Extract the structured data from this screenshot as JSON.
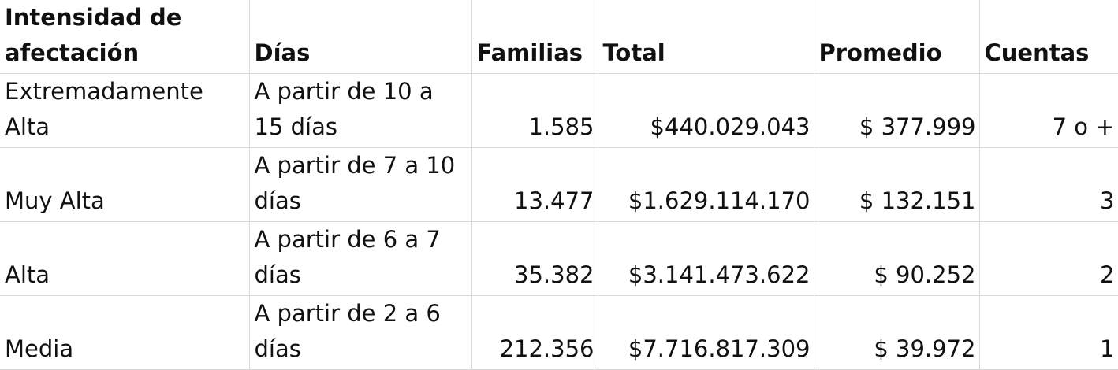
{
  "headers": {
    "intensidad": "Intensidad de afectación",
    "dias": "Días",
    "familias": "Familias",
    "total": "Total",
    "promedio": "Promedio",
    "cuentas": "Cuentas"
  },
  "rows": [
    {
      "intensidad": "Extremadamente Alta",
      "dias": "A partir de 10 a 15 días",
      "familias": "1.585",
      "total": "$440.029.043",
      "promedio": "$ 377.999",
      "cuentas": "7 o +"
    },
    {
      "intensidad": "Muy Alta",
      "dias": "A partir de 7 a 10 días",
      "familias": "13.477",
      "total": "$1.629.114.170",
      "promedio": "$ 132.151",
      "cuentas": "3"
    },
    {
      "intensidad": "Alta",
      "dias": "A partir de 6 a 7 días",
      "familias": "35.382",
      "total": "$3.141.473.622",
      "promedio": "$ 90.252",
      "cuentas": "2"
    },
    {
      "intensidad": "Media",
      "dias": "A partir de 2 a 6 días",
      "familias": "212.356",
      "total": "$7.716.817.309",
      "promedio": "$ 39.972",
      "cuentas": "1"
    }
  ]
}
